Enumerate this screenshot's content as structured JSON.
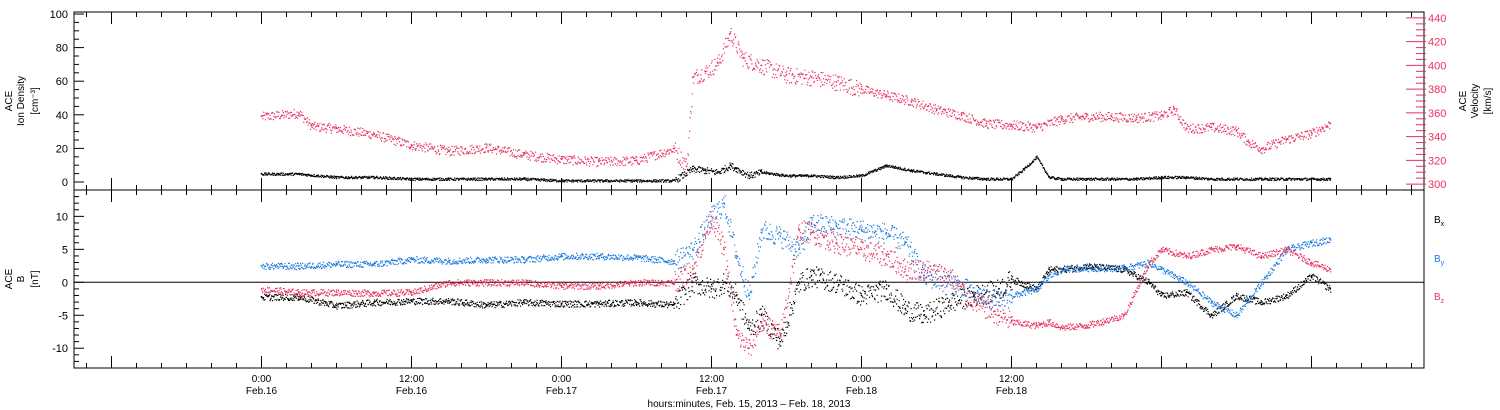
{
  "chart_data": [
    {
      "type": "scatter",
      "panel": "top",
      "left_label": [
        "ACE",
        "Ion Density"
      ],
      "left_units": "[cm⁻³]",
      "right_label": [
        "ACE",
        "Velocity"
      ],
      "right_units": "[km/s]",
      "ylim_left": [
        0,
        100
      ],
      "ylim_right": [
        295,
        445
      ],
      "left_ticks": [
        0,
        20,
        40,
        60,
        80,
        100
      ],
      "right_ticks": [
        300,
        320,
        340,
        360,
        380,
        400,
        420,
        440
      ],
      "colors": {
        "density": "#000000",
        "velocity": "#e8315f"
      },
      "series": [
        {
          "name": "Ion Density",
          "axis": "left",
          "x_hours": [
            0,
            3,
            6,
            9,
            12,
            15,
            18,
            21,
            24,
            27,
            30,
            33,
            34.5,
            35.5,
            36.5,
            37,
            37.5,
            38,
            39,
            40,
            42,
            44,
            46,
            48,
            50,
            52,
            54,
            56,
            58,
            60,
            61,
            62,
            63,
            64,
            66,
            68,
            70,
            72,
            74,
            76,
            78,
            80,
            82,
            84,
            85.5
          ],
          "values": [
            5,
            5,
            3,
            3,
            2,
            2,
            2,
            2,
            1,
            1,
            1,
            1,
            8,
            7,
            6,
            8,
            10,
            8,
            4,
            6,
            4,
            4,
            3,
            4,
            10,
            7,
            5,
            3,
            2,
            2,
            8,
            15,
            3,
            2,
            2,
            2,
            2,
            3,
            3,
            2,
            2,
            2,
            2,
            2,
            2
          ]
        },
        {
          "name": "Velocity",
          "axis": "right",
          "x_hours": [
            0,
            3,
            4,
            6,
            9,
            12,
            15,
            18,
            21,
            24,
            27,
            30,
            33,
            34,
            34.5,
            35.5,
            36.5,
            37.5,
            38.5,
            40,
            42,
            44,
            46,
            48,
            50,
            52,
            54,
            56,
            58,
            60,
            62,
            64,
            66,
            68,
            70,
            72,
            73,
            74,
            76,
            78,
            79,
            80,
            82,
            84,
            85.5
          ],
          "values": [
            357,
            360,
            349,
            347,
            342,
            333,
            328,
            331,
            325,
            321,
            319,
            320,
            330,
            315,
            390,
            395,
            402,
            427,
            406,
            400,
            392,
            390,
            386,
            380,
            375,
            370,
            363,
            358,
            351,
            350,
            348,
            355,
            357,
            357,
            356,
            358,
            363,
            347,
            348,
            345,
            335,
            330,
            338,
            343,
            351
          ]
        }
      ]
    },
    {
      "type": "scatter",
      "panel": "bottom",
      "left_label": [
        "ACE",
        "B"
      ],
      "left_units": "[nT]",
      "ylim": [
        -13,
        14
      ],
      "ticks": [
        -10,
        -5,
        0,
        5,
        10
      ],
      "zero_line": true,
      "colors": {
        "Bx": "#000000",
        "By": "#1f7bdc",
        "Bz": "#e8315f"
      },
      "x_hours": [
        0,
        3,
        6,
        9,
        12,
        15,
        18,
        21,
        24,
        27,
        30,
        33,
        34.5,
        36,
        37,
        38,
        39,
        40,
        41.5,
        43,
        44,
        46,
        48,
        50,
        51.5,
        53,
        55,
        57,
        59,
        60,
        62,
        63,
        64,
        66,
        69,
        71,
        72,
        74,
        76,
        78,
        80,
        82,
        84,
        85.5
      ],
      "series": [
        {
          "name": "Bx",
          "label_main": "B",
          "label_sub": "x",
          "values": [
            -2.2,
            -2.2,
            -3.5,
            -3,
            -2.8,
            -2.8,
            -3.4,
            -3,
            -3.2,
            -3.2,
            -3,
            -3.4,
            0,
            -1,
            0,
            -2,
            -7,
            -5,
            -9,
            0,
            1,
            0,
            -2,
            -1,
            -4,
            -5,
            -3,
            -2,
            -1,
            0.5,
            -1,
            2,
            2,
            2.5,
            2,
            0,
            -2,
            -1.5,
            -5,
            -2,
            -3,
            -2,
            1,
            -1
          ]
        },
        {
          "name": "By",
          "label_main": "B",
          "label_sub": "y",
          "values": [
            2.5,
            2.5,
            2.8,
            2.8,
            3.5,
            3.3,
            3.5,
            3.5,
            4,
            4,
            3.8,
            3.2,
            5,
            10,
            12,
            4,
            -2,
            8,
            7,
            5,
            9,
            8.5,
            8,
            7.5,
            6,
            1,
            0,
            -1.5,
            -3,
            -2,
            -1,
            1,
            2,
            2.2,
            2.2,
            3,
            2,
            0,
            -3,
            -5,
            0,
            5,
            6,
            6.5
          ]
        },
        {
          "name": "Bz",
          "label_main": "B",
          "label_sub": "z",
          "values": [
            -1,
            -1.5,
            -1.5,
            -1.6,
            -1.5,
            0,
            0,
            0,
            -0.5,
            -0.5,
            0,
            0,
            2,
            10,
            5,
            -8,
            -10,
            -6,
            -8,
            8,
            7.5,
            6,
            5,
            4,
            2,
            2,
            1,
            -3,
            -5,
            -6,
            -6.5,
            -6,
            -6.8,
            -6.5,
            -5,
            3,
            5,
            4,
            5,
            5.5,
            4,
            5,
            3,
            2
          ]
        }
      ]
    }
  ],
  "time_axis": {
    "xlim_hours": [
      -15,
      93
    ],
    "major_ticks": [
      {
        "hours": 0,
        "time": "0:00",
        "date": "Feb.16"
      },
      {
        "hours": 12,
        "time": "12:00",
        "date": "Feb.16"
      },
      {
        "hours": 24,
        "time": "0:00",
        "date": "Feb.17"
      },
      {
        "hours": 36,
        "time": "12:00",
        "date": "Feb.17"
      },
      {
        "hours": 48,
        "time": "0:00",
        "date": "Feb.18"
      },
      {
        "hours": 60,
        "time": "12:00",
        "date": "Feb.18"
      }
    ],
    "caption": "hours:minutes, Feb. 15, 2013 – Feb. 18, 2013"
  }
}
